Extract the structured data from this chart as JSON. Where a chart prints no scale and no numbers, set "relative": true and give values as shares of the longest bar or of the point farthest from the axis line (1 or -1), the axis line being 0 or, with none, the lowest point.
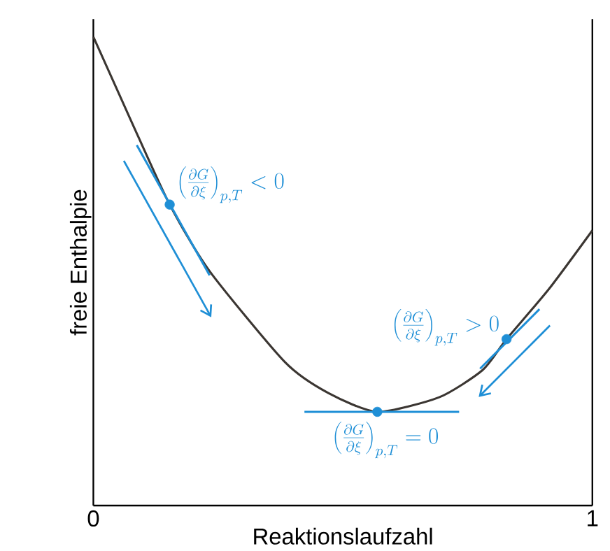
{
  "chart_data": {
    "type": "line",
    "relative": true,
    "xlabel": "Reaktionslaufzahl",
    "ylabel": "freie Enthalpie",
    "xlim": [
      0,
      1
    ],
    "xticks": [
      0,
      1
    ],
    "tick_labels": "x",
    "series": [
      {
        "color": "#3b3632",
        "x": [
          0,
          0.076,
          0.153,
          0.233,
          0.384,
          0.471,
          0.569,
          0.693,
          0.78,
          0.828,
          0.913,
          1
        ],
        "values": [
          1,
          0.82,
          0.642,
          0.5,
          0.306,
          0.24,
          0.2,
          0.231,
          0.289,
          0.355,
          0.462,
          0.587
        ]
      },
      {
        "type": "line",
        "color": "#1f8fd6",
        "x": [
          0.087,
          0.233
        ],
        "values": [
          0.769,
          0.491
        ]
      },
      {
        "type": "line",
        "color": "#1f8fd6",
        "x": [
          0.423,
          0.733
        ],
        "values": [
          0.2,
          0.2
        ]
      },
      {
        "type": "line",
        "color": "#1f8fd6",
        "x": [
          0.775,
          0.894
        ],
        "values": [
          0.292,
          0.419
        ]
      },
      {
        "type": "scatter",
        "color": "#1f8fd6",
        "x": [
          0.153,
          0.569,
          0.828
        ],
        "values": [
          0.642,
          0.2,
          0.355
        ]
      }
    ],
    "annotations": [
      {
        "text": "\\left(\\frac{\\partial G}{\\partial \\xi}\\right)_{p,T} < 0",
        "x": 0.153,
        "y": 0.642
      },
      {
        "text": "\\left(\\frac{\\partial G}{\\partial \\xi}\\right)_{p,T} = 0",
        "x": 0.569,
        "y": 0.2
      },
      {
        "text": "\\left(\\frac{\\partial G}{\\partial \\xi}\\right)_{p,T} > 0",
        "x": 0.828,
        "y": 0.355
      }
    ]
  }
}
